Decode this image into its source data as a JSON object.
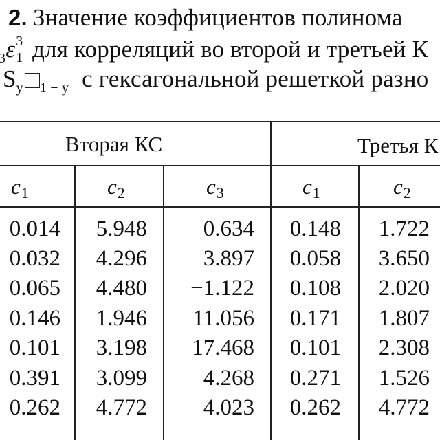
{
  "caption": {
    "table_label": "2.",
    "line1": "Значение коэффициентов полинома",
    "line2_symbol": "ε",
    "line2_sub_prefix": "3",
    "line2_sub": "1",
    "line2_sup": "3",
    "line2_text": "для корреляций во второй и третьей К",
    "line3_formula_prefix": "S",
    "line3_sub_y": "y",
    "line3_sub_rest": "1 − y",
    "line3_text": "с гексагональной решеткой разно"
  },
  "table": {
    "group_headers": [
      "Вторая КС",
      "Третья К"
    ],
    "column_headers": [
      {
        "symbol": "c",
        "index": "1"
      },
      {
        "symbol": "c",
        "index": "2"
      },
      {
        "symbol": "c",
        "index": "3"
      },
      {
        "symbol": "c",
        "index": "1"
      },
      {
        "symbol": "c",
        "index": "2"
      }
    ],
    "rows": [
      [
        "0.014",
        "5.948",
        "0.634",
        "0.148",
        "1.722"
      ],
      [
        "0.032",
        "4.296",
        "3.897",
        "0.058",
        "3.650"
      ],
      [
        "0.065",
        "4.480",
        "−1.122",
        "0.108",
        "2.020"
      ],
      [
        "0.146",
        "1.946",
        "11.056",
        "0.171",
        "1.807"
      ],
      [
        "0.101",
        "3.198",
        "17.468",
        "0.101",
        "2.308"
      ],
      [
        "0.391",
        "3.099",
        "4.268",
        "0.271",
        "1.526"
      ],
      [
        "0.262",
        "4.772",
        "4.023",
        "0.262",
        "4.772"
      ]
    ]
  }
}
